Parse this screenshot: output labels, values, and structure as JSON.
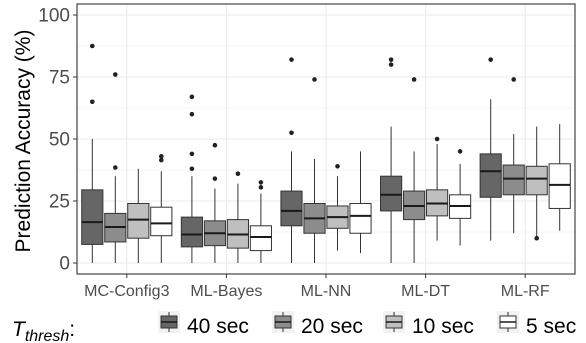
{
  "chart_data": {
    "type": "boxplot",
    "ylabel": "Prediction Accuracy (%)",
    "xlabel": "",
    "ylim": [
      0,
      100
    ],
    "yticks": [
      0,
      25,
      50,
      75,
      100
    ],
    "grid": true,
    "legend_position": "bottom",
    "legend_title_main": "T",
    "legend_title_sub": "thresh",
    "legend_title_suffix": ":",
    "categories": [
      "MC-Config3",
      "ML-Bayes",
      "ML-NN",
      "ML-DT",
      "ML-RF"
    ],
    "series": [
      {
        "name": "40 sec",
        "color": "#666666",
        "boxes": [
          {
            "whisker_low": 0,
            "q1": 7.5,
            "median": 16.5,
            "q3": 29.5,
            "whisker_high": 50,
            "outliers": [
              65,
              87.5
            ]
          },
          {
            "whisker_low": 0,
            "q1": 6.5,
            "median": 11.5,
            "q3": 18.5,
            "whisker_high": 35,
            "outliers": [
              38,
              44,
              60,
              67
            ]
          },
          {
            "whisker_low": 0,
            "q1": 15,
            "median": 21,
            "q3": 29,
            "whisker_high": 45,
            "outliers": [
              52.5,
              82
            ]
          },
          {
            "whisker_low": 0,
            "q1": 21,
            "median": 27.5,
            "q3": 35,
            "whisker_high": 55,
            "outliers": [
              80,
              82
            ]
          },
          {
            "whisker_low": 9,
            "q1": 26.5,
            "median": 37,
            "q3": 44,
            "whisker_high": 66,
            "outliers": [
              82
            ]
          }
        ]
      },
      {
        "name": "20 sec",
        "color": "#8c8c8c",
        "boxes": [
          {
            "whisker_low": 0,
            "q1": 8.5,
            "median": 14.5,
            "q3": 20,
            "whisker_high": 35,
            "outliers": [
              38.5,
              76
            ]
          },
          {
            "whisker_low": 0,
            "q1": 7,
            "median": 12,
            "q3": 17,
            "whisker_high": 30,
            "outliers": [
              34,
              47.5
            ]
          },
          {
            "whisker_low": 0,
            "q1": 12,
            "median": 18,
            "q3": 24,
            "whisker_high": 42,
            "outliers": [
              74
            ]
          },
          {
            "whisker_low": 0,
            "q1": 17.5,
            "median": 23,
            "q3": 29,
            "whisker_high": 45,
            "outliers": [
              74
            ]
          },
          {
            "whisker_low": 12,
            "q1": 27.5,
            "median": 34,
            "q3": 39.5,
            "whisker_high": 52,
            "outliers": [
              74
            ]
          }
        ]
      },
      {
        "name": "10 sec",
        "color": "#bfbfbf",
        "boxes": [
          {
            "whisker_low": 0,
            "q1": 10,
            "median": 17.5,
            "q3": 24,
            "whisker_high": 38,
            "outliers": []
          },
          {
            "whisker_low": 0,
            "q1": 6,
            "median": 11.5,
            "q3": 17.5,
            "whisker_high": 32,
            "outliers": [
              36
            ]
          },
          {
            "whisker_low": 5,
            "q1": 14,
            "median": 18.5,
            "q3": 23,
            "whisker_high": 35,
            "outliers": [
              39
            ]
          },
          {
            "whisker_low": 9,
            "q1": 19,
            "median": 24,
            "q3": 29.5,
            "whisker_high": 48,
            "outliers": [
              50
            ]
          },
          {
            "whisker_low": 10,
            "q1": 27.5,
            "median": 34,
            "q3": 39,
            "whisker_high": 55,
            "outliers": [
              10
            ]
          }
        ]
      },
      {
        "name": "5 sec",
        "color": "#ffffff",
        "boxes": [
          {
            "whisker_low": 0,
            "q1": 11,
            "median": 16,
            "q3": 22.5,
            "whisker_high": 37,
            "outliers": [
              41.5,
              43
            ]
          },
          {
            "whisker_low": 0,
            "q1": 5,
            "median": 10.5,
            "q3": 15,
            "whisker_high": 28,
            "outliers": [
              30.5,
              32.5
            ]
          },
          {
            "whisker_low": 4,
            "q1": 12,
            "median": 19,
            "q3": 24,
            "whisker_high": 45,
            "outliers": []
          },
          {
            "whisker_low": 7,
            "q1": 18,
            "median": 23,
            "q3": 27.5,
            "whisker_high": 40,
            "outliers": [
              45
            ]
          },
          {
            "whisker_low": 13,
            "q1": 22,
            "median": 31.5,
            "q3": 40,
            "whisker_high": 56,
            "outliers": []
          }
        ]
      }
    ]
  }
}
